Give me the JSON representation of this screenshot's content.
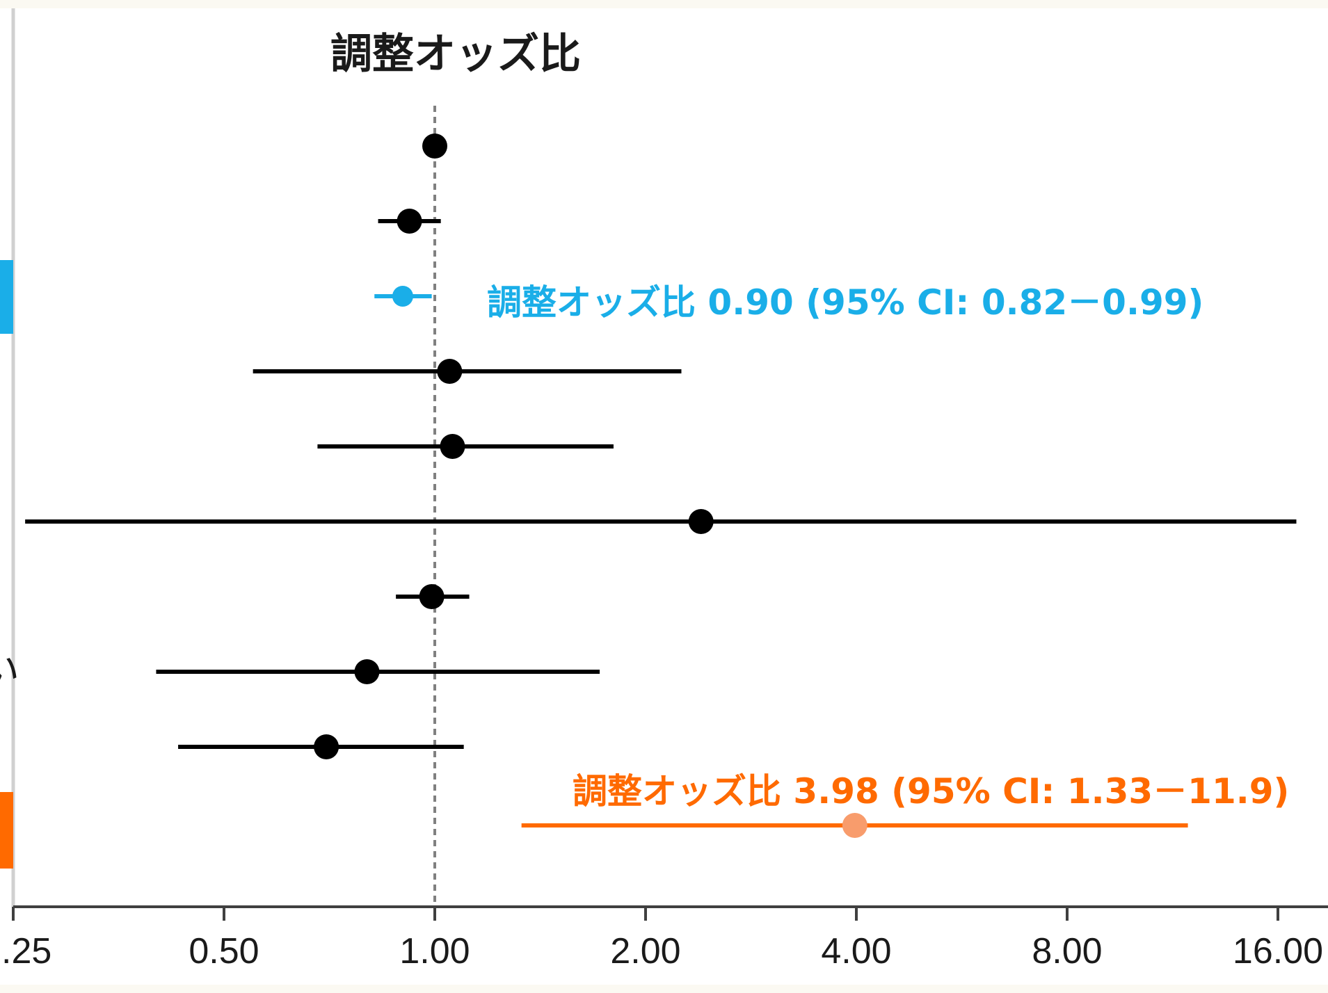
{
  "chart_data": {
    "type": "scatter",
    "subtype": "forest-plot",
    "title": "調整オッズ比",
    "x_scale": "log2",
    "xlim": [
      0.25,
      17.5
    ],
    "xticks": [
      0.25,
      0.5,
      1,
      2,
      4,
      8,
      16
    ],
    "xtick_labels": [
      ".25",
      "0.50",
      "1.00",
      "2.00",
      "4.00",
      "8.00",
      "16.00"
    ],
    "reference_line": 1.0,
    "grid": false,
    "row_label_fragment": "い",
    "colors": {
      "default": "#000000",
      "highlight_blue": "#1aaee8",
      "highlight_orange": "#ff6a00",
      "orange_point": "#f89c6c",
      "reference_line": "#808080"
    },
    "rows": [
      {
        "estimate": 1.0,
        "lower": null,
        "upper": null,
        "color": "default"
      },
      {
        "estimate": 0.92,
        "lower": 0.83,
        "upper": 1.02,
        "color": "default"
      },
      {
        "estimate": 0.9,
        "lower": 0.82,
        "upper": 0.99,
        "color": "highlight_blue",
        "annotation": "調整オッズ比 0.90 (95% CI: 0.82－0.99)",
        "side_marker": true
      },
      {
        "estimate": 1.05,
        "lower": 0.55,
        "upper": 2.25,
        "color": "default"
      },
      {
        "estimate": 1.06,
        "lower": 0.68,
        "upper": 1.8,
        "color": "default"
      },
      {
        "estimate": 2.4,
        "lower": 0.26,
        "upper": 17.0,
        "color": "default"
      },
      {
        "estimate": 0.99,
        "lower": 0.88,
        "upper": 1.12,
        "color": "default"
      },
      {
        "estimate": 0.8,
        "lower": 0.4,
        "upper": 1.72,
        "color": "default"
      },
      {
        "estimate": 0.7,
        "lower": 0.43,
        "upper": 1.1,
        "color": "default"
      },
      {
        "estimate": 3.98,
        "lower": 1.33,
        "upper": 11.9,
        "color": "highlight_orange",
        "annotation": "調整オッズ比 3.98 (95% CI: 1.33－11.9)",
        "side_marker": true
      }
    ]
  }
}
